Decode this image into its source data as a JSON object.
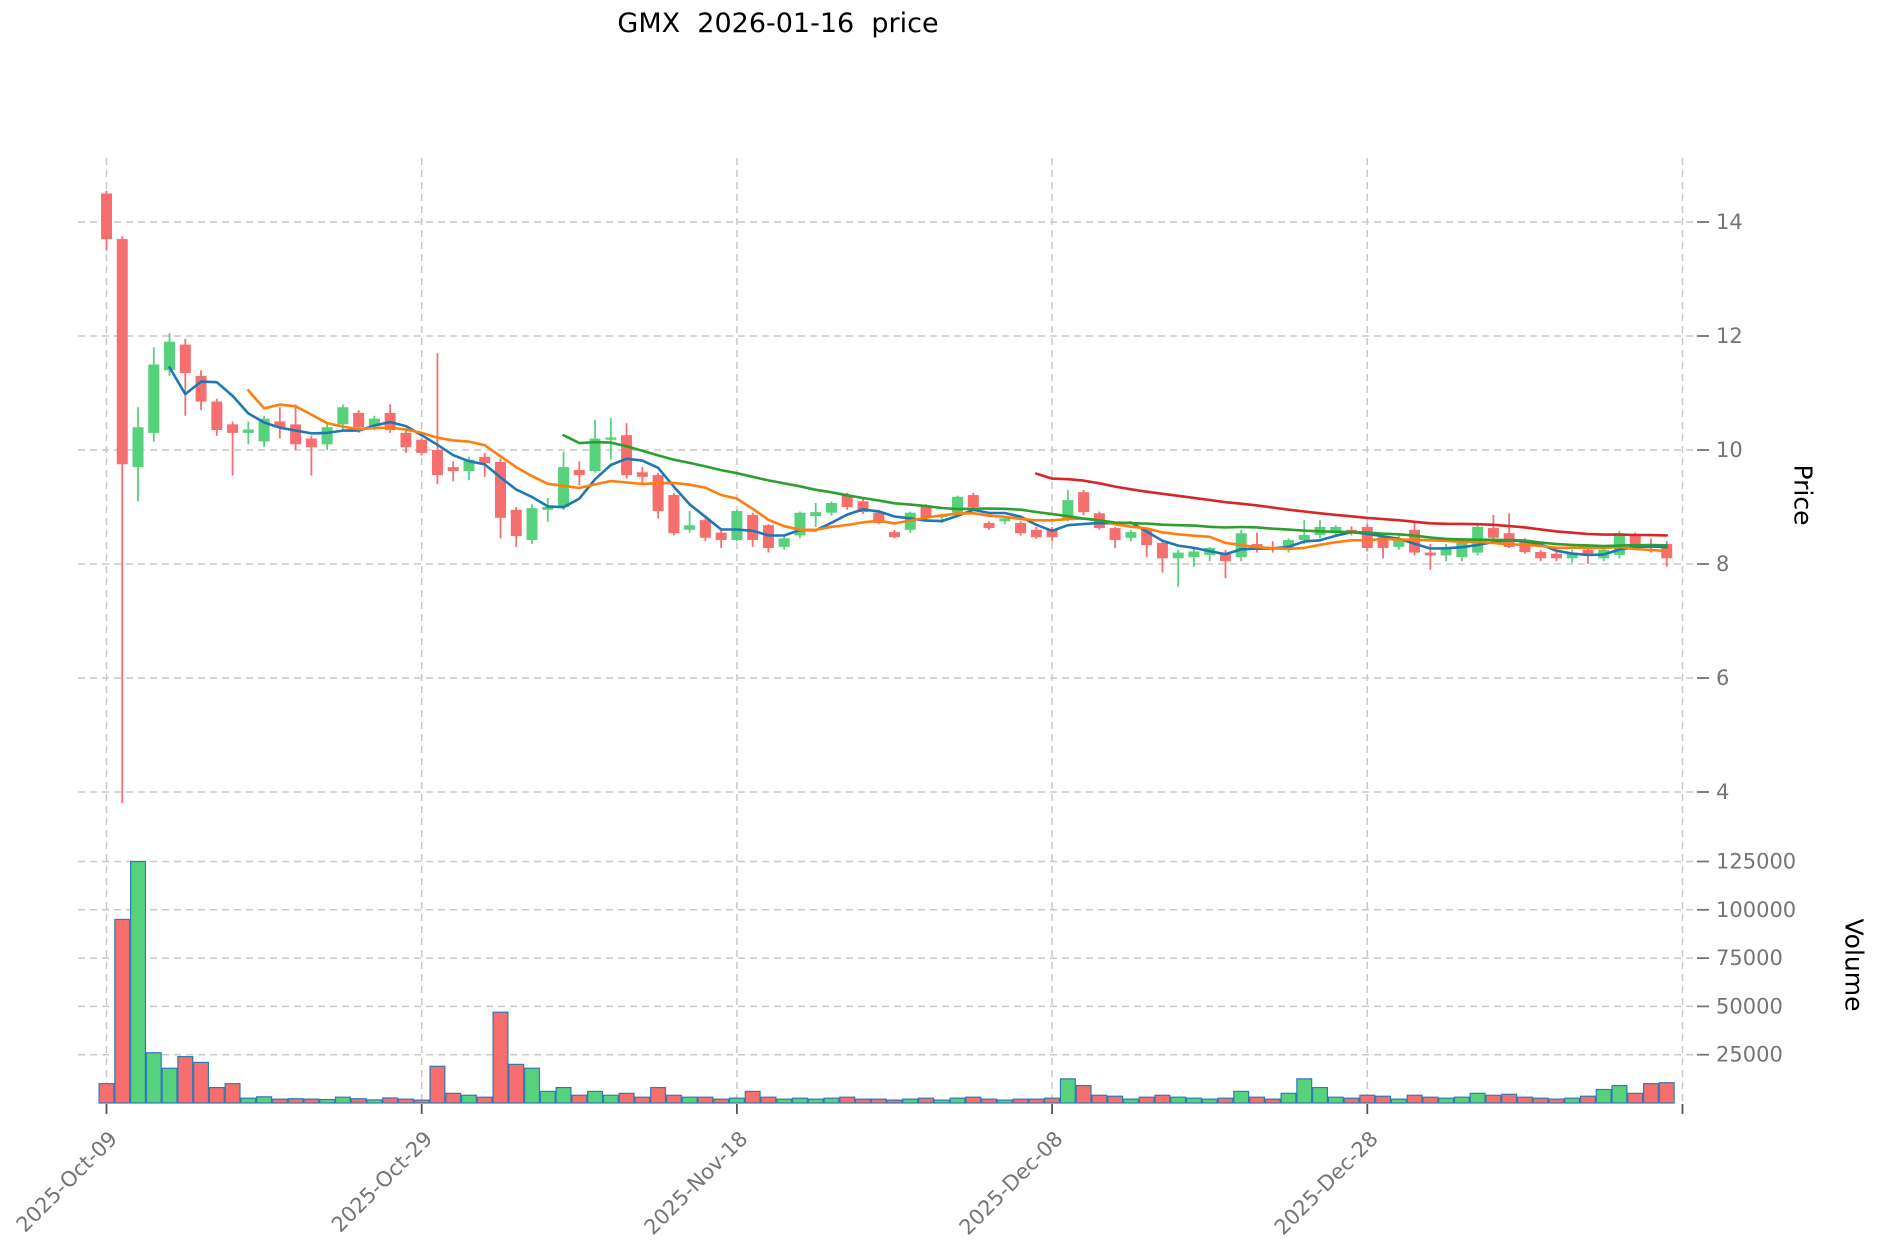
{
  "title": "GMX  2026-01-16  price",
  "price_axis": {
    "label": "Price",
    "ticks": [
      4,
      6,
      8,
      10,
      12,
      14
    ]
  },
  "volume_axis": {
    "label": "Volume",
    "ticks": [
      25000,
      50000,
      75000,
      100000,
      125000
    ]
  },
  "x_axis": {
    "ticks": [
      {
        "label": "2025-Oct-09",
        "day": 0
      },
      {
        "label": "2025-Oct-29",
        "day": 20
      },
      {
        "label": "2025-Nov-18",
        "day": 40
      },
      {
        "label": "2025-Dec-08",
        "day": 60
      },
      {
        "label": "2025-Dec-28",
        "day": 80
      }
    ],
    "unlabeled_gridline_day": 100
  },
  "colors": {
    "up": "#57d27c",
    "down": "#f66e6e",
    "volume_bar_edge": "#2e7bb5",
    "gridline": "#c9c9c9",
    "tick_text": "#757575",
    "tick_mark": "#555555"
  },
  "chart_data": {
    "type": "candlestick+volume",
    "title": "GMX  2026-01-16  price",
    "ylabel_price": "Price",
    "ylabel_volume": "Volume",
    "price_ylim": [
      3.1,
      15.1
    ],
    "volume_ylim": [
      0,
      130000
    ],
    "grid": "dashed",
    "moving_averages": [
      {
        "window": 5,
        "color": "#1f77b4"
      },
      {
        "window": 10,
        "color": "#ff7f0e"
      },
      {
        "window": 30,
        "color": "#2ca02c"
      },
      {
        "window": 60,
        "color": "#d62728"
      }
    ],
    "columns": [
      "date",
      "open",
      "high",
      "low",
      "close",
      "volume"
    ],
    "candles": [
      [
        "2025-10-09",
        14.5,
        14.55,
        13.5,
        13.7,
        10000
      ],
      [
        "2025-10-10",
        13.7,
        13.75,
        3.8,
        9.75,
        95000
      ],
      [
        "2025-10-11",
        9.7,
        10.75,
        9.1,
        10.4,
        125000
      ],
      [
        "2025-10-12",
        10.3,
        11.8,
        10.15,
        11.5,
        26000
      ],
      [
        "2025-10-13",
        11.4,
        12.05,
        11.3,
        11.9,
        18000
      ],
      [
        "2025-10-14",
        11.85,
        11.95,
        10.6,
        11.35,
        24000
      ],
      [
        "2025-10-15",
        11.3,
        11.4,
        10.7,
        10.85,
        21000
      ],
      [
        "2025-10-16",
        10.85,
        10.9,
        10.25,
        10.35,
        8000
      ],
      [
        "2025-10-17",
        10.45,
        10.5,
        9.55,
        10.3,
        10000
      ],
      [
        "2025-10-18",
        10.3,
        10.5,
        10.1,
        10.36,
        2500
      ],
      [
        "2025-10-19",
        10.15,
        10.6,
        10.05,
        10.55,
        3200
      ],
      [
        "2025-10-20",
        10.5,
        10.75,
        10.2,
        10.4,
        2000
      ],
      [
        "2025-10-21",
        10.45,
        10.8,
        10.0,
        10.1,
        2200
      ],
      [
        "2025-10-22",
        10.2,
        10.25,
        9.55,
        10.05,
        2000
      ],
      [
        "2025-10-23",
        10.1,
        10.45,
        10.0,
        10.4,
        1800
      ],
      [
        "2025-10-24",
        10.45,
        10.8,
        10.35,
        10.75,
        3000
      ],
      [
        "2025-10-25",
        10.65,
        10.7,
        10.3,
        10.4,
        2200
      ],
      [
        "2025-10-26",
        10.42,
        10.6,
        10.35,
        10.55,
        1600
      ],
      [
        "2025-10-27",
        10.65,
        10.8,
        10.3,
        10.35,
        2600
      ],
      [
        "2025-10-28",
        10.3,
        10.35,
        9.95,
        10.05,
        2000
      ],
      [
        "2025-10-29",
        10.18,
        10.2,
        9.9,
        9.95,
        1500
      ],
      [
        "2025-10-30",
        10.0,
        11.7,
        9.4,
        9.56,
        19000
      ],
      [
        "2025-10-31",
        9.7,
        9.8,
        9.45,
        9.63,
        5000
      ],
      [
        "2025-11-01",
        9.63,
        9.88,
        9.47,
        9.83,
        4000
      ],
      [
        "2025-11-02",
        9.88,
        9.95,
        9.53,
        9.77,
        3000
      ],
      [
        "2025-11-03",
        9.79,
        9.85,
        8.45,
        8.81,
        47000
      ],
      [
        "2025-11-04",
        8.95,
        9.0,
        8.3,
        8.49,
        20000
      ],
      [
        "2025-11-05",
        8.42,
        9.05,
        8.35,
        8.98,
        18000
      ],
      [
        "2025-11-06",
        8.95,
        9.16,
        8.74,
        9.0,
        6000
      ],
      [
        "2025-11-07",
        9.0,
        9.97,
        8.95,
        9.7,
        8000
      ],
      [
        "2025-11-08",
        9.65,
        9.8,
        9.38,
        9.56,
        4000
      ],
      [
        "2025-11-09",
        9.63,
        10.53,
        9.6,
        10.2,
        6000
      ],
      [
        "2025-11-10",
        10.18,
        10.56,
        9.83,
        10.22,
        4000
      ],
      [
        "2025-11-11",
        10.26,
        10.47,
        9.5,
        9.56,
        5000
      ],
      [
        "2025-11-12",
        9.61,
        9.7,
        9.4,
        9.53,
        3000
      ],
      [
        "2025-11-13",
        9.56,
        9.6,
        8.8,
        8.93,
        8000
      ],
      [
        "2025-11-14",
        9.21,
        9.25,
        8.5,
        8.54,
        4000
      ],
      [
        "2025-11-15",
        8.6,
        8.93,
        8.55,
        8.68,
        3000
      ],
      [
        "2025-11-16",
        8.77,
        8.8,
        8.4,
        8.46,
        3000
      ],
      [
        "2025-11-17",
        8.55,
        8.6,
        8.28,
        8.42,
        2000
      ],
      [
        "2025-11-18",
        8.42,
        8.95,
        8.4,
        8.93,
        2500
      ],
      [
        "2025-11-19",
        8.86,
        8.9,
        8.3,
        8.42,
        6000
      ],
      [
        "2025-11-20",
        8.68,
        8.7,
        8.2,
        8.28,
        3000
      ],
      [
        "2025-11-21",
        8.3,
        8.5,
        8.25,
        8.45,
        2000
      ],
      [
        "2025-11-22",
        8.5,
        8.92,
        8.45,
        8.9,
        2500
      ],
      [
        "2025-11-23",
        8.84,
        9.07,
        8.65,
        8.91,
        2000
      ],
      [
        "2025-11-24",
        8.9,
        9.1,
        8.85,
        9.07,
        2500
      ],
      [
        "2025-11-25",
        9.21,
        9.25,
        8.95,
        9.0,
        3000
      ],
      [
        "2025-11-26",
        9.1,
        9.15,
        8.88,
        8.91,
        2000
      ],
      [
        "2025-11-27",
        8.9,
        8.95,
        8.7,
        8.72,
        2000
      ],
      [
        "2025-11-28",
        8.56,
        8.6,
        8.45,
        8.47,
        1500
      ],
      [
        "2025-11-29",
        8.6,
        8.92,
        8.55,
        8.9,
        2000
      ],
      [
        "2025-11-30",
        9.0,
        9.05,
        8.78,
        8.81,
        2500
      ],
      [
        "2025-12-01",
        8.82,
        8.88,
        8.72,
        8.86,
        1500
      ],
      [
        "2025-12-02",
        8.9,
        9.2,
        8.85,
        9.18,
        2500
      ],
      [
        "2025-12-03",
        9.21,
        9.25,
        8.98,
        9.0,
        3000
      ],
      [
        "2025-12-04",
        8.72,
        8.75,
        8.6,
        8.63,
        2000
      ],
      [
        "2025-12-05",
        8.75,
        8.85,
        8.7,
        8.8,
        1500
      ],
      [
        "2025-12-06",
        8.72,
        8.75,
        8.5,
        8.54,
        2000
      ],
      [
        "2025-12-07",
        8.6,
        8.65,
        8.44,
        8.47,
        2000
      ],
      [
        "2025-12-08",
        8.6,
        8.65,
        8.4,
        8.47,
        2500
      ],
      [
        "2025-12-09",
        8.8,
        9.3,
        8.75,
        9.12,
        12500
      ],
      [
        "2025-12-10",
        9.26,
        9.3,
        8.85,
        8.91,
        9000
      ],
      [
        "2025-12-11",
        8.89,
        8.92,
        8.6,
        8.63,
        4000
      ],
      [
        "2025-12-12",
        8.63,
        8.65,
        8.28,
        8.42,
        3500
      ],
      [
        "2025-12-13",
        8.46,
        8.6,
        8.4,
        8.56,
        2000
      ],
      [
        "2025-12-14",
        8.6,
        8.62,
        8.12,
        8.33,
        3000
      ],
      [
        "2025-12-15",
        8.37,
        8.4,
        7.85,
        8.1,
        4000
      ],
      [
        "2025-12-16",
        8.1,
        8.25,
        7.6,
        8.2,
        3000
      ],
      [
        "2025-12-17",
        8.12,
        8.3,
        7.95,
        8.22,
        2500
      ],
      [
        "2025-12-18",
        8.16,
        8.3,
        8.05,
        8.28,
        2000
      ],
      [
        "2025-12-19",
        8.2,
        8.25,
        7.75,
        8.05,
        2500
      ],
      [
        "2025-12-20",
        8.12,
        8.6,
        8.05,
        8.54,
        6000
      ],
      [
        "2025-12-21",
        8.35,
        8.55,
        8.2,
        8.25,
        3000
      ],
      [
        "2025-12-22",
        8.3,
        8.4,
        8.2,
        8.25,
        2000
      ],
      [
        "2025-12-23",
        8.28,
        8.45,
        8.2,
        8.42,
        5000
      ],
      [
        "2025-12-24",
        8.42,
        8.77,
        8.35,
        8.51,
        12500
      ],
      [
        "2025-12-25",
        8.51,
        8.77,
        8.45,
        8.65,
        8000
      ],
      [
        "2025-12-26",
        8.56,
        8.68,
        8.5,
        8.65,
        3000
      ],
      [
        "2025-12-27",
        8.6,
        8.66,
        8.5,
        8.56,
        2500
      ],
      [
        "2025-12-28",
        8.65,
        8.7,
        8.22,
        8.28,
        4000
      ],
      [
        "2025-12-29",
        8.47,
        8.5,
        8.1,
        8.28,
        3500
      ],
      [
        "2025-12-30",
        8.3,
        8.5,
        8.25,
        8.45,
        2000
      ],
      [
        "2025-12-31",
        8.6,
        8.74,
        8.15,
        8.2,
        4000
      ],
      [
        "2026-01-01",
        8.2,
        8.35,
        7.9,
        8.15,
        3000
      ],
      [
        "2026-01-02",
        8.15,
        8.35,
        8.05,
        8.3,
        2500
      ],
      [
        "2026-01-03",
        8.12,
        8.4,
        8.05,
        8.37,
        3000
      ],
      [
        "2026-01-04",
        8.2,
        8.68,
        8.15,
        8.65,
        5000
      ],
      [
        "2026-01-05",
        8.63,
        8.86,
        8.42,
        8.46,
        4000
      ],
      [
        "2026-01-06",
        8.54,
        8.89,
        8.28,
        8.3,
        4500
      ],
      [
        "2026-01-07",
        8.42,
        8.45,
        8.18,
        8.21,
        3000
      ],
      [
        "2026-01-08",
        8.21,
        8.25,
        8.05,
        8.1,
        2500
      ],
      [
        "2026-01-09",
        8.18,
        8.22,
        8.05,
        8.1,
        2000
      ],
      [
        "2026-01-10",
        8.1,
        8.25,
        8.02,
        8.2,
        2500
      ],
      [
        "2026-01-11",
        8.25,
        8.35,
        8.0,
        8.18,
        3500
      ],
      [
        "2026-01-12",
        8.1,
        8.28,
        8.05,
        8.25,
        7000
      ],
      [
        "2026-01-13",
        8.16,
        8.58,
        8.1,
        8.54,
        9000
      ],
      [
        "2026-01-14",
        8.49,
        8.55,
        8.25,
        8.3,
        5000
      ],
      [
        "2026-01-15",
        8.32,
        8.45,
        8.2,
        8.28,
        10000
      ],
      [
        "2026-01-16",
        8.35,
        8.4,
        7.95,
        8.1,
        10500
      ]
    ]
  }
}
